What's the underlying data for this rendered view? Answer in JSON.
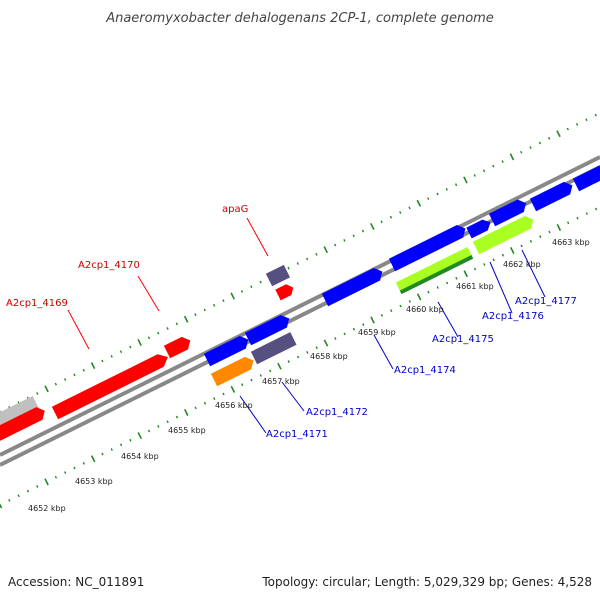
{
  "title": "Anaeromyxobacter dehalogenans 2CP-1, complete genome",
  "footer": {
    "accession": "Accession: NC_011891",
    "summary": "Topology: circular; Length: 5,029,329 bp; Genes: 4,528"
  },
  "colors": {
    "red_gene": "#ff0000",
    "blue_gene": "#0000ff",
    "purple_gene": "#55507f",
    "orange_gene": "#ff8800",
    "green_gene": "#aaff22",
    "darkgreen_gene": "#228822",
    "gray_gene": "#c0c0c0",
    "backbone": "#888888",
    "tick": "#228822",
    "red_label": "#cc0000",
    "blue_label": "#0000cc"
  },
  "scale_labels": [
    "4652 kbp",
    "4653 kbp",
    "4654 kbp",
    "4655 kbp",
    "4656 kbp",
    "4657 kbp",
    "4658 kbp",
    "4659 kbp",
    "4660 kbp",
    "4661 kbp",
    "4662 kbp",
    "4663 kbp"
  ],
  "genes_top": [
    {
      "name": "A2cp1_4169"
    },
    {
      "name": "A2cp1_4170"
    },
    {
      "name": "apaG"
    }
  ],
  "genes_bottom": [
    {
      "name": "A2cp1_4171"
    },
    {
      "name": "A2cp1_4172"
    },
    {
      "name": "A2cp1_4174"
    },
    {
      "name": "A2cp1_4175"
    },
    {
      "name": "A2cp1_4176"
    },
    {
      "name": "A2cp1_4177"
    }
  ]
}
